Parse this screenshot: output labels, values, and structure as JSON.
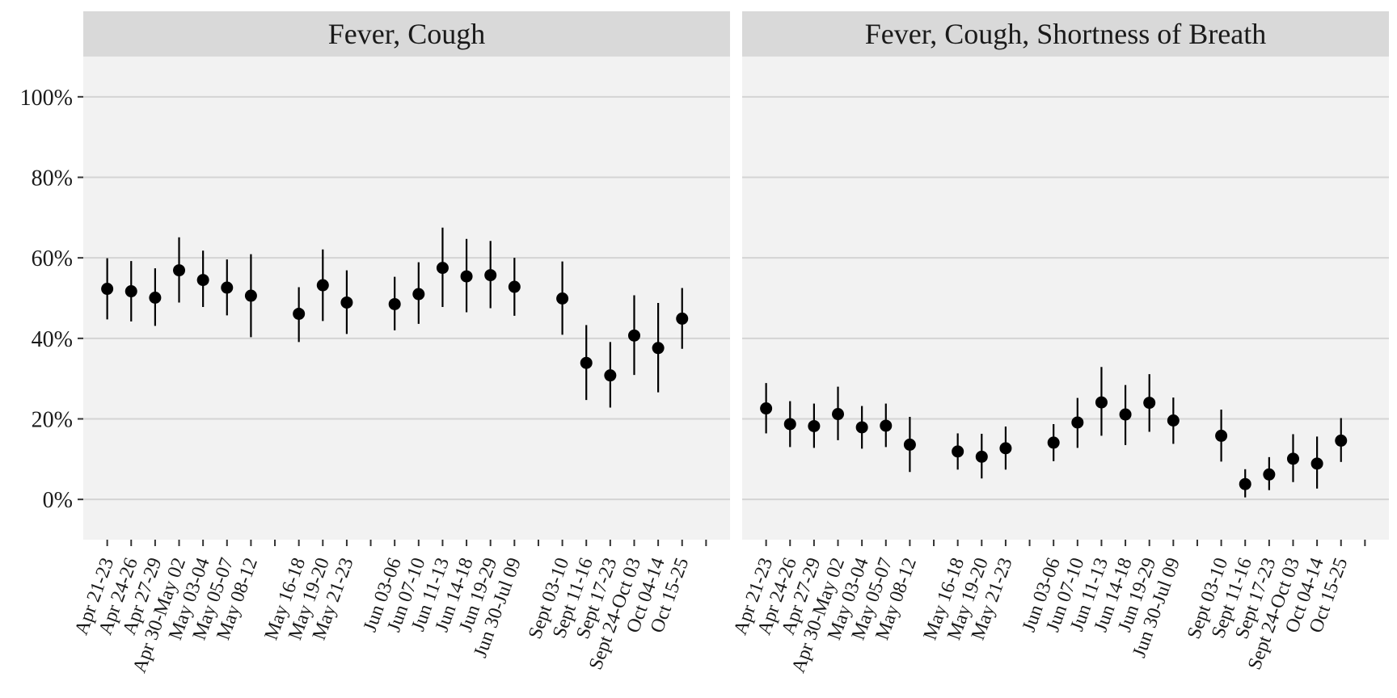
{
  "chart_data": {
    "type": "scatter",
    "subtype": "point-range facets",
    "ylim": [
      -10,
      110
    ],
    "yticks": [
      0,
      20,
      40,
      60,
      80,
      100
    ],
    "ytick_labels": [
      "0%",
      "20%",
      "40%",
      "60%",
      "80%",
      "100%"
    ],
    "grid": true,
    "panel_background": "#f2f2f2",
    "strip_background": "#d9d9d9",
    "point_color": "#000000",
    "x_slots": 26,
    "categories": [
      "Apr 21-23",
      "Apr 24-26",
      "Apr 27-29",
      "Apr 30-May 02",
      "May 03-04",
      "May 05-07",
      "May 08-12",
      "May 16-18",
      "May 19-20",
      "May 21-23",
      "Jun 03-06",
      "Jun 07-10",
      "Jun 11-13",
      "Jun 14-18",
      "Jun 19-29",
      "Jun 30-Jul 09",
      "Sept 03-10",
      "Sept 11-16",
      "Sept 17-23",
      "Sept 24-Oct 03",
      "Oct 04-14",
      "Oct 15-25"
    ],
    "category_slots": [
      0,
      1,
      2,
      3,
      4,
      5,
      6,
      8,
      9,
      10,
      12,
      13,
      14,
      15,
      16,
      17,
      19,
      20,
      21,
      22,
      23,
      24
    ],
    "panels": [
      {
        "title": "Fever, Cough",
        "values": [
          52.3,
          51.7,
          50.1,
          56.9,
          54.5,
          52.6,
          50.6,
          46.1,
          53.2,
          48.9,
          48.5,
          51.0,
          57.5,
          55.4,
          55.7,
          52.8,
          49.9,
          33.9,
          30.8,
          40.7,
          37.6,
          44.9
        ],
        "lower": [
          44.7,
          44.2,
          43.1,
          48.9,
          47.8,
          45.7,
          40.3,
          39.1,
          44.3,
          41.1,
          42.0,
          43.6,
          47.8,
          46.5,
          47.5,
          45.6,
          40.9,
          24.7,
          22.8,
          30.9,
          26.6,
          37.4
        ],
        "upper": [
          59.9,
          59.2,
          57.4,
          65.1,
          61.8,
          59.6,
          60.9,
          52.7,
          62.1,
          56.9,
          55.3,
          58.9,
          67.5,
          64.7,
          64.2,
          60.0,
          59.1,
          43.3,
          39.1,
          50.7,
          48.8,
          52.5
        ]
      },
      {
        "title": "Fever, Cough, Shortness of Breath",
        "values": [
          22.6,
          18.7,
          18.2,
          21.2,
          17.9,
          18.3,
          13.6,
          11.9,
          10.6,
          12.7,
          14.1,
          19.1,
          24.1,
          21.1,
          24.0,
          19.6,
          15.8,
          3.8,
          6.2,
          10.1,
          8.9,
          14.6
        ],
        "lower": [
          16.4,
          13.0,
          12.8,
          14.7,
          12.6,
          13.0,
          6.8,
          7.4,
          5.2,
          7.4,
          9.5,
          12.8,
          15.8,
          13.5,
          16.8,
          13.8,
          9.4,
          0.5,
          2.3,
          4.3,
          2.7,
          9.3
        ],
        "upper": [
          28.9,
          24.4,
          23.8,
          28.0,
          23.2,
          23.8,
          20.5,
          16.4,
          16.3,
          18.1,
          18.7,
          25.2,
          32.9,
          28.4,
          31.1,
          25.3,
          22.3,
          7.5,
          10.5,
          16.2,
          15.6,
          20.2
        ]
      }
    ]
  }
}
